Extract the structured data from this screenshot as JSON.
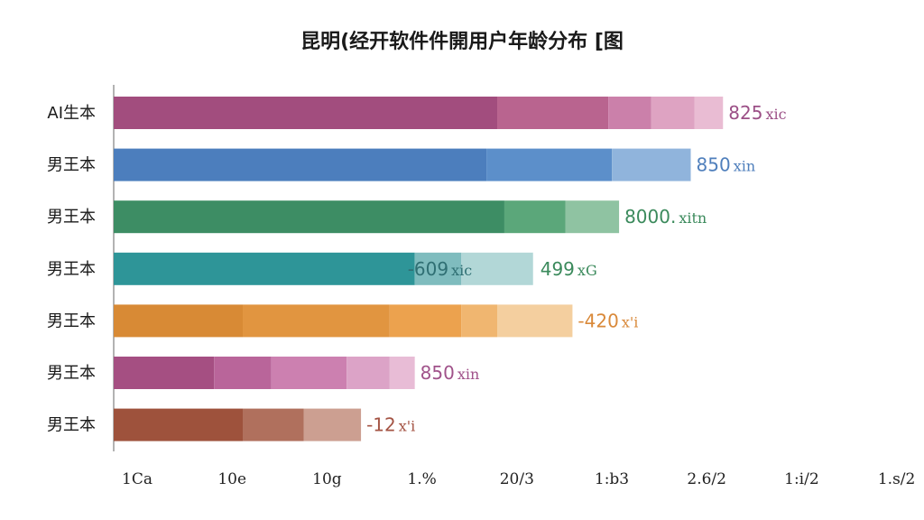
{
  "chart_data": {
    "type": "bar",
    "orientation": "horizontal",
    "stacked": true,
    "title": "昆明(经开软件件開用户年龄分布 [图",
    "xlabel": "",
    "ylabel": "",
    "xlim": [
      0,
      2.15
    ],
    "grid": false,
    "x_ticks": [
      "1Ca",
      "10e",
      "10g",
      "1.%",
      "20/3",
      "1:b3",
      "2.6/2",
      "1:i/2",
      "1.s/2"
    ],
    "categories": [
      "AI生本",
      "男王本",
      "男王本",
      "男王本",
      "男王本",
      "男王本",
      "男王本"
    ],
    "bars": [
      {
        "category": "AI生本",
        "segments": [
          1.07,
          0.31,
          0.12,
          0.12,
          0.08
        ],
        "colors": [
          "#a24d7e",
          "#b9648f",
          "#cb80aa",
          "#dea3c2",
          "#e9bcd3"
        ],
        "labels": [
          {
            "value": "825",
            "unit": "xic",
            "color": "#9b4f86"
          }
        ]
      },
      {
        "category": "男王本",
        "segments": [
          1.04,
          0.35,
          0.22
        ],
        "colors": [
          "#4c7ebd",
          "#5c8fca",
          "#90b4dc"
        ],
        "labels": [
          {
            "value": "850",
            "unit": "xin",
            "color": "#4f7fbc"
          }
        ]
      },
      {
        "category": "男王本",
        "segments": [
          1.09,
          0.17,
          0.15
        ],
        "colors": [
          "#3d8d64",
          "#5ba77a",
          "#8fc3a2"
        ],
        "labels": [
          {
            "value": "8000.",
            "unit": "xitn",
            "color": "#3b8a5c"
          }
        ]
      },
      {
        "category": "男王本",
        "segments": [
          0.84,
          0.13,
          0.2
        ],
        "colors": [
          "#2e9598",
          "#7fbcbe",
          "#b2d7d7"
        ],
        "labels": [
          {
            "value": "-609",
            "unit": "xic",
            "color": "#2f6f73"
          },
          {
            "value": "499",
            "unit": "xG",
            "color": "#3b8a5c"
          }
        ]
      },
      {
        "category": "男王本",
        "segments": [
          0.36,
          0.41,
          0.2,
          0.1,
          0.21
        ],
        "colors": [
          "#d88a35",
          "#e19540",
          "#eca24e",
          "#f0b670",
          "#f4cf9f"
        ],
        "labels": [
          {
            "value": "-420",
            "unit": "x'i",
            "color": "#d9893a"
          }
        ]
      },
      {
        "category": "男王本",
        "segments": [
          0.28,
          0.16,
          0.21,
          0.12,
          0.07
        ],
        "colors": [
          "#a54f82",
          "#b9659a",
          "#cc80b0",
          "#dca3c7",
          "#e8bcd6"
        ],
        "labels": [
          {
            "value": "850",
            "unit": "xin",
            "color": "#a0528a"
          }
        ]
      },
      {
        "category": "男王本",
        "segments": [
          0.36,
          0.17,
          0.16
        ],
        "colors": [
          "#9e523c",
          "#b0705d",
          "#cc9f91"
        ],
        "labels": [
          {
            "value": "-12",
            "unit": "x'i",
            "color": "#a45444"
          }
        ]
      }
    ]
  }
}
